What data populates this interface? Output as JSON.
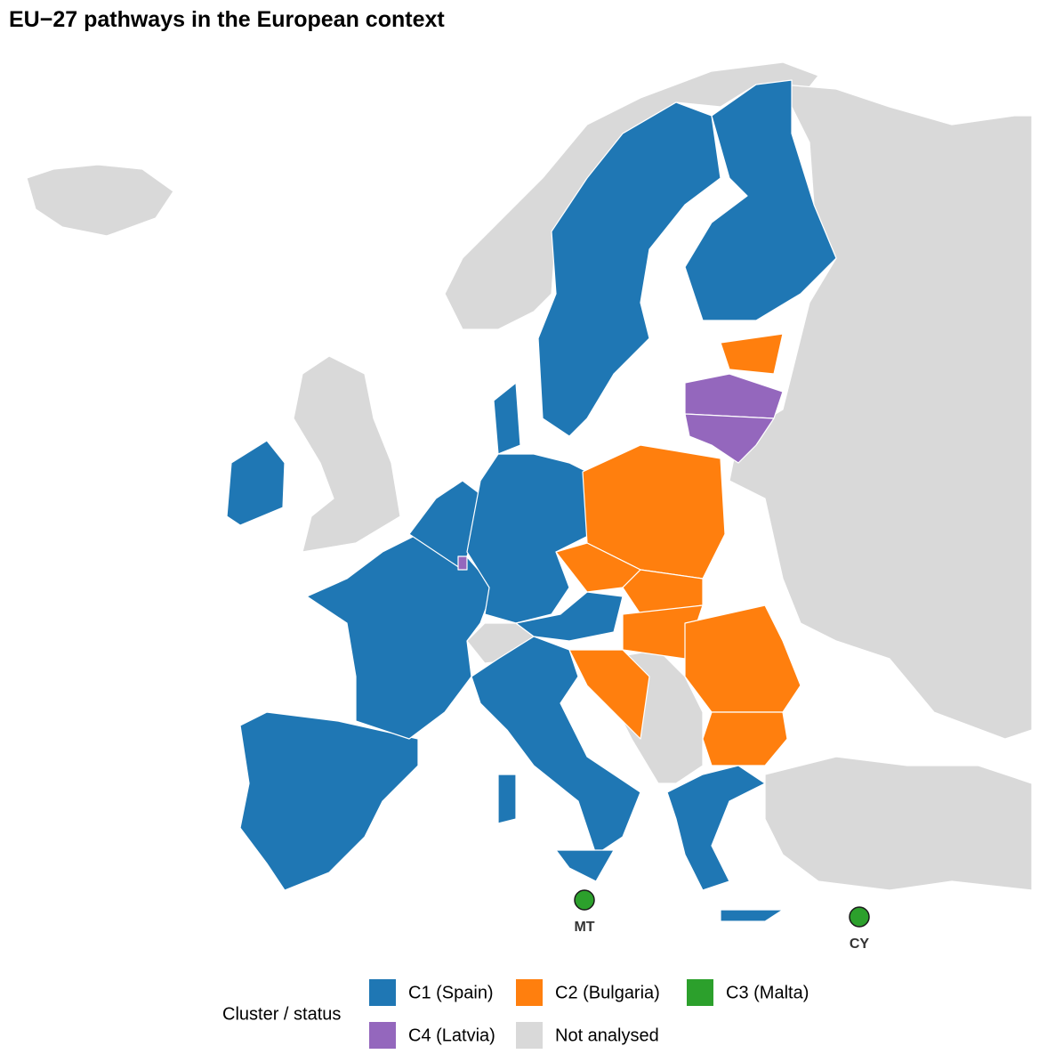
{
  "title": "EU−27 pathways in the European context",
  "legend": {
    "title": "Cluster / status",
    "items": [
      {
        "label": "C1 (Spain)",
        "color": "#1f77b4"
      },
      {
        "label": "C2 (Bulgaria)",
        "color": "#ff7f0e"
      },
      {
        "label": "C3 (Malta)",
        "color": "#2ca02c"
      },
      {
        "label": "C4 (Latvia)",
        "color": "#9467bd"
      },
      {
        "label": "Not analysed",
        "color": "#d9d9d9"
      }
    ]
  },
  "markers": [
    {
      "label": "MT",
      "color": "#2ca02c"
    },
    {
      "label": "CY",
      "color": "#2ca02c"
    }
  ]
}
